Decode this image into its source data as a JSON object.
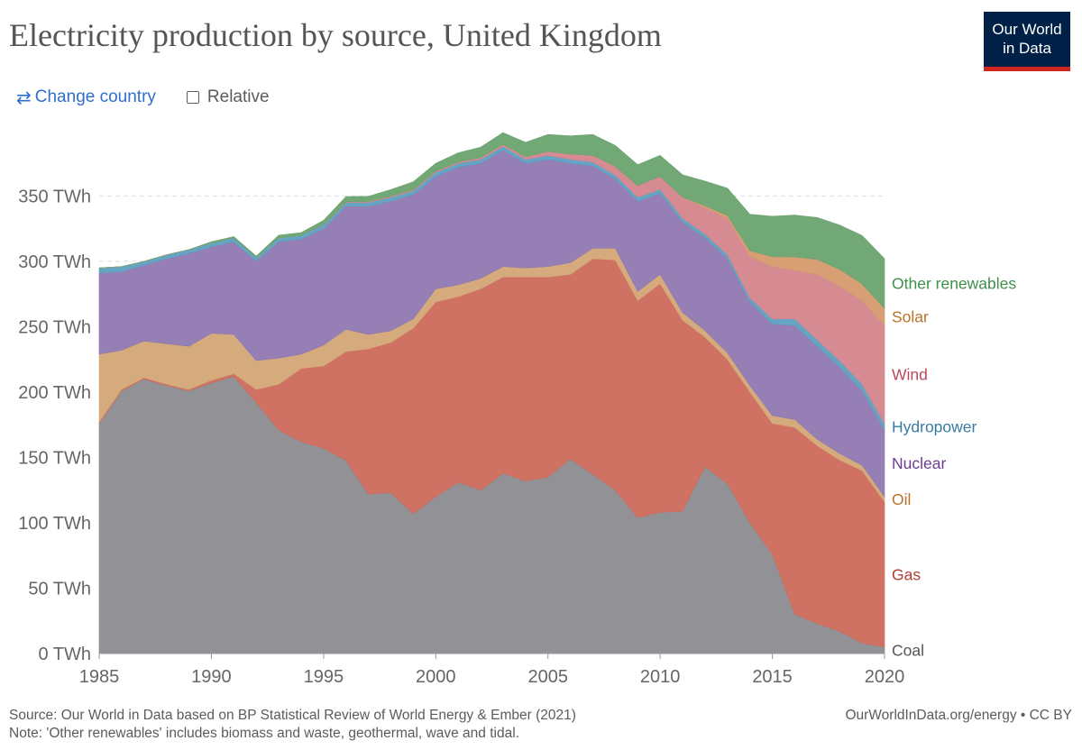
{
  "header": {
    "title": "Electricity production by source, United Kingdom",
    "logo_line1": "Our World",
    "logo_line2": "in Data"
  },
  "controls": {
    "change_country_label": "Change country",
    "relative_label": "Relative"
  },
  "footer": {
    "source": "Source: Our World in Data based on BP Statistical Review of World Energy & Ember (2021)",
    "note": "Note: 'Other renewables' includes biomass and waste, geothermal, wave and tidal.",
    "credit": "OurWorldInData.org/energy • CC BY"
  },
  "chart_data": {
    "type": "area",
    "stacked": true,
    "unit": "TWh",
    "x": [
      1985,
      1986,
      1987,
      1988,
      1989,
      1990,
      1991,
      1992,
      1993,
      1994,
      1995,
      1996,
      1997,
      1998,
      1999,
      2000,
      2001,
      2002,
      2003,
      2004,
      2005,
      2006,
      2007,
      2008,
      2009,
      2010,
      2011,
      2012,
      2013,
      2014,
      2015,
      2016,
      2017,
      2018,
      2019,
      2020
    ],
    "xlim": [
      1985,
      2020
    ],
    "ylim": [
      0,
      400
    ],
    "x_ticks": [
      1985,
      1990,
      1995,
      2000,
      2005,
      2010,
      2015,
      2020
    ],
    "y_ticks": [
      0,
      50,
      100,
      150,
      200,
      250,
      300,
      350
    ],
    "y_tick_labels": [
      "0 TWh",
      "50 TWh",
      "100 TWh",
      "150 TWh",
      "200 TWh",
      "250 TWh",
      "300 TWh",
      "350 TWh"
    ],
    "grid": "horizontal dashed",
    "legend": "right, inline labels",
    "series": [
      {
        "name": "Coal",
        "color": "#8c8c90",
        "label_color": "#555555",
        "values": [
          176,
          201,
          210,
          205,
          201,
          207,
          212,
          192,
          171,
          162,
          157,
          148,
          122,
          123,
          107,
          120,
          131,
          125,
          138,
          132,
          135,
          149,
          137,
          125,
          104,
          108,
          109,
          143,
          130,
          100,
          76,
          30,
          23,
          17,
          8,
          5
        ]
      },
      {
        "name": "Gas",
        "color": "#cd6a5b",
        "label_color": "#b13e2f",
        "values": [
          1,
          1,
          1,
          1,
          1,
          2,
          2,
          10,
          35,
          56,
          63,
          83,
          111,
          115,
          142,
          149,
          142,
          154,
          150,
          156,
          153,
          141,
          165,
          176,
          166,
          175,
          146,
          99,
          95,
          100,
          100,
          143,
          136,
          131,
          132,
          111
        ]
      },
      {
        "name": "Oil",
        "color": "#d3a676",
        "label_color": "#b8732a",
        "values": [
          52,
          30,
          28,
          31,
          33,
          36,
          30,
          22,
          20,
          11,
          16,
          17,
          11,
          9,
          7,
          10,
          9,
          8,
          8,
          7,
          8,
          9,
          8,
          9,
          7,
          7,
          6,
          5,
          5,
          5,
          6,
          6,
          5,
          5,
          4,
          4
        ]
      },
      {
        "name": "Nuclear",
        "color": "#8f78b1",
        "label_color": "#6c3f93",
        "values": [
          62,
          60,
          58,
          65,
          71,
          66,
          71,
          76,
          89,
          88,
          89,
          94,
          98,
          99,
          95,
          86,
          90,
          88,
          89,
          80,
          82,
          76,
          63,
          53,
          69,
          62,
          69,
          71,
          72,
          64,
          70,
          72,
          71,
          66,
          57,
          51
        ]
      },
      {
        "name": "Hydropower",
        "color": "#5e9fc0",
        "label_color": "#3a7aa3",
        "values": [
          4,
          4,
          3,
          3,
          3,
          3,
          3,
          3,
          3,
          3,
          3,
          3,
          3,
          3,
          3,
          3,
          3,
          3,
          3,
          3,
          3,
          3,
          3,
          3,
          3,
          3,
          3,
          3,
          3,
          3,
          4,
          5,
          5,
          5,
          5,
          5
        ]
      },
      {
        "name": "Wind",
        "color": "#d4858d",
        "label_color": "#b9475b",
        "values": [
          0,
          0,
          0,
          0,
          0,
          0,
          0,
          0,
          0,
          0,
          0.4,
          0.5,
          0.7,
          0.9,
          0.9,
          1,
          1,
          1.3,
          1.5,
          2,
          3,
          4,
          5,
          6.6,
          8.9,
          10,
          16,
          20,
          28,
          32,
          40,
          37,
          50,
          57,
          64,
          75
        ]
      },
      {
        "name": "Solar",
        "color": "#d69a6e",
        "label_color": "#b8732a",
        "values": [
          0,
          0,
          0,
          0,
          0,
          0,
          0,
          0,
          0,
          0,
          0,
          0,
          0,
          0,
          0,
          0,
          0,
          0,
          0,
          0,
          0,
          0,
          0,
          0,
          0,
          0,
          0.2,
          1.4,
          2,
          4,
          7.5,
          10.4,
          11.5,
          12.8,
          12.7,
          13
        ]
      },
      {
        "name": "Other renewables",
        "color": "#6aa36f",
        "label_color": "#3f8f4c",
        "values": [
          0,
          0,
          0,
          0,
          0,
          1,
          1,
          1,
          2,
          2,
          3,
          4,
          4,
          5,
          6,
          6,
          7,
          8,
          9,
          11,
          13,
          14,
          16,
          16,
          16,
          16,
          17,
          19,
          21,
          28,
          31,
          32,
          32,
          34,
          37,
          38
        ]
      }
    ]
  }
}
